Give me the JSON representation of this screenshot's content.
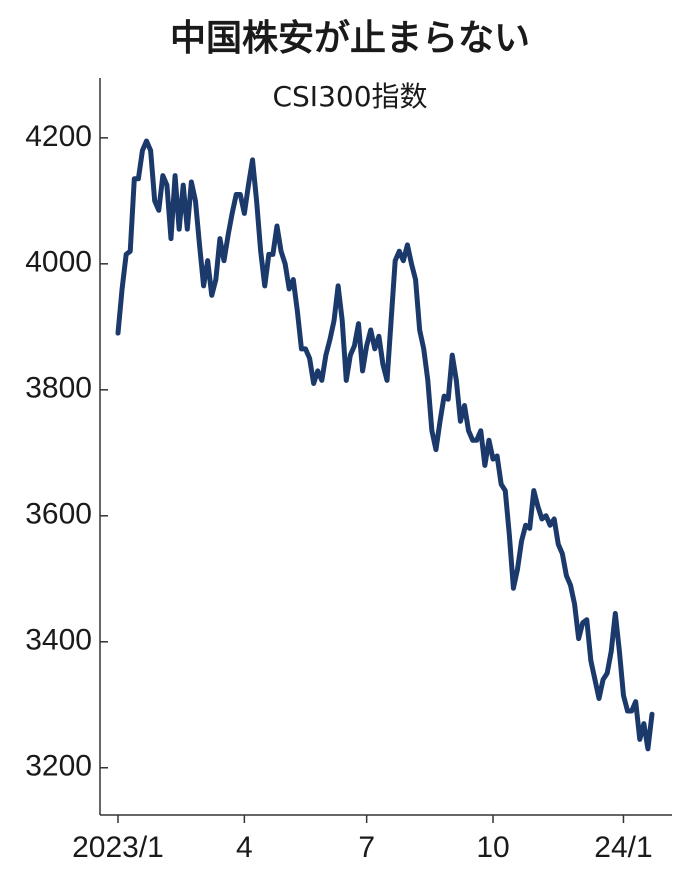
{
  "chart_data": {
    "type": "line",
    "title": "中国株安が止まらない",
    "subtitle": "CSI300指数",
    "categories": [
      "2023/1",
      null,
      null,
      null,
      null,
      null,
      null,
      null,
      null,
      null,
      null,
      null,
      null,
      null,
      null,
      null,
      null,
      null,
      null,
      null,
      null,
      null,
      null,
      null,
      null,
      null,
      null,
      null,
      null,
      null,
      null,
      "4",
      null,
      null,
      null,
      null,
      null,
      null,
      null,
      null,
      null,
      null,
      null,
      null,
      null,
      null,
      null,
      null,
      null,
      null,
      null,
      null,
      null,
      null,
      null,
      null,
      null,
      null,
      null,
      null,
      null,
      "7",
      null,
      null,
      null,
      null,
      null,
      null,
      null,
      null,
      null,
      null,
      null,
      null,
      null,
      null,
      null,
      null,
      null,
      null,
      null,
      null,
      null,
      null,
      null,
      null,
      null,
      null,
      null,
      null,
      null,
      null,
      "10",
      null,
      null,
      null,
      null,
      null,
      null,
      null,
      null,
      null,
      null,
      null,
      null,
      null,
      null,
      null,
      null,
      null,
      null,
      null,
      null,
      null,
      null,
      null,
      null,
      null,
      null,
      null,
      null,
      null,
      null,
      null,
      "24/1",
      null,
      null,
      null,
      null,
      null,
      null,
      null
    ],
    "values": [
      3890,
      3960,
      4015,
      4020,
      4135,
      4135,
      4180,
      4195,
      4180,
      4100,
      4085,
      4140,
      4125,
      4040,
      4140,
      4055,
      4125,
      4055,
      4130,
      4100,
      4030,
      3965,
      4005,
      3950,
      3975,
      4040,
      4005,
      4045,
      4080,
      4110,
      4110,
      4080,
      4125,
      4165,
      4100,
      4020,
      3965,
      4015,
      4015,
      4060,
      4020,
      4000,
      3960,
      3975,
      3925,
      3865,
      3865,
      3850,
      3810,
      3830,
      3815,
      3855,
      3880,
      3910,
      3965,
      3910,
      3815,
      3855,
      3870,
      3905,
      3830,
      3870,
      3895,
      3865,
      3885,
      3840,
      3815,
      3910,
      4005,
      4020,
      4005,
      4030,
      4000,
      3975,
      3895,
      3865,
      3815,
      3735,
      3705,
      3750,
      3790,
      3785,
      3855,
      3815,
      3750,
      3775,
      3735,
      3720,
      3720,
      3735,
      3680,
      3720,
      3690,
      3695,
      3650,
      3640,
      3570,
      3485,
      3515,
      3560,
      3585,
      3580,
      3640,
      3615,
      3595,
      3600,
      3585,
      3595,
      3555,
      3540,
      3505,
      3490,
      3460,
      3405,
      3430,
      3435,
      3370,
      3340,
      3310,
      3340,
      3350,
      3385,
      3445,
      3385,
      3315,
      3290,
      3290,
      3305,
      3245,
      3270,
      3230,
      3285
    ],
    "color": "#1b3a6b",
    "ylim": [
      3125,
      4295
    ],
    "yticks": [
      3200,
      3400,
      3600,
      3800,
      4000,
      4200
    ]
  }
}
